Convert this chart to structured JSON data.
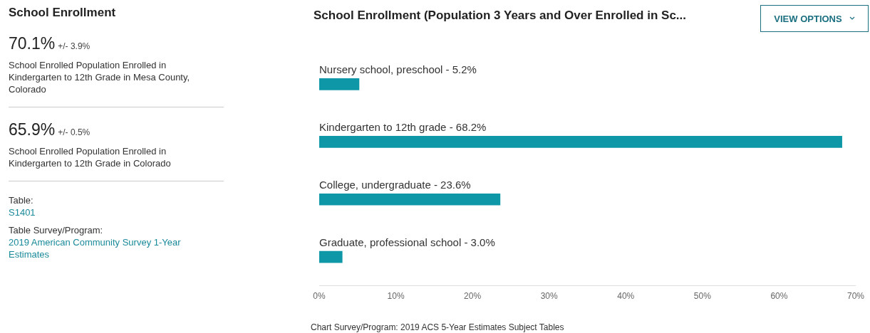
{
  "chart_data": [
    {
      "type": "other",
      "title": "School Enrollment",
      "annotations": [
        "70.1%",
        "+/- 3.9%",
        "School Enrolled Population Enrolled in Kindergarten to 12th Grade in Mesa County, Colorado",
        "65.9%",
        "+/- 0.5%",
        "School Enrolled Population Enrolled in Kindergarten to 12th Grade in Colorado",
        "Table:",
        "S1401",
        "Table Survey/Program:",
        "2019 American Community Survey 1-Year Estimates"
      ]
    },
    {
      "type": "bar",
      "orientation": "horizontal",
      "title": "School Enrollment (Population 3 Years and Over Enrolled in Sc...",
      "categories": [
        "Nursery school, preschool - 5.2%",
        "Kindergarten to 12th grade - 68.2%",
        "College, undergraduate - 23.6%",
        "Graduate, professional school - 3.0%"
      ],
      "values": [
        5.2,
        68.2,
        23.6,
        3.0
      ],
      "color": "#0e97a6",
      "xlim": [
        0,
        70
      ],
      "xticks": [
        {
          "value": 0,
          "label": "0%"
        },
        {
          "value": 10,
          "label": "10%"
        },
        {
          "value": 20,
          "label": "20%"
        },
        {
          "value": 30,
          "label": "30%"
        },
        {
          "value": 40,
          "label": "40%"
        },
        {
          "value": 50,
          "label": "50%"
        },
        {
          "value": 60,
          "label": "60%"
        },
        {
          "value": 70,
          "label": "70%"
        }
      ],
      "grid": false,
      "legend": false,
      "annotations": [
        "VIEW OPTIONS",
        "Chart Survey/Program: 2019 ACS 5-Year Estimates Subject Tables"
      ]
    }
  ]
}
